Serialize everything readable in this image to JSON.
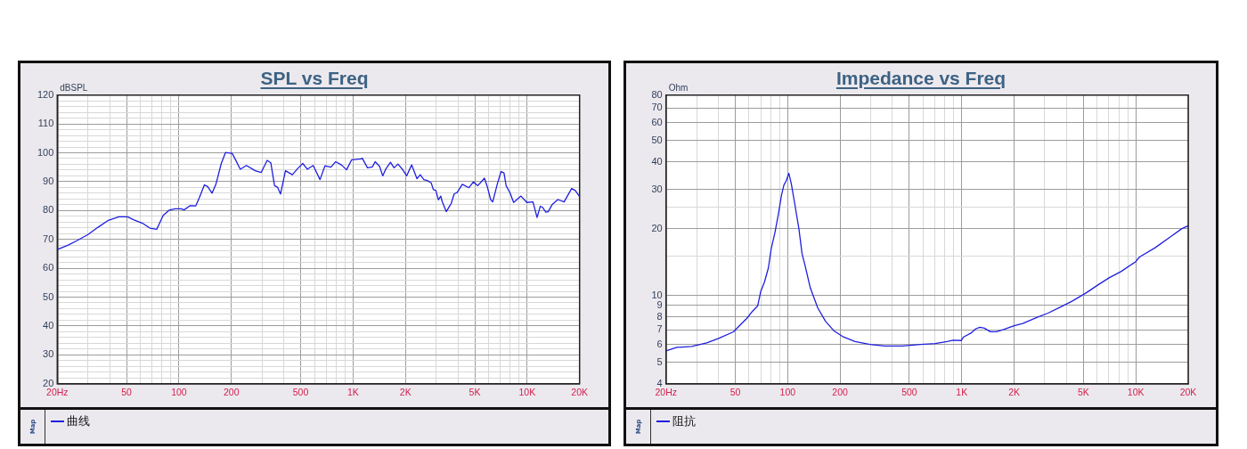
{
  "chart_data": [
    {
      "type": "line",
      "title": "SPL vs Freq",
      "ylabel": "dBSPL",
      "log": "x",
      "grid": true,
      "legend": "bottom",
      "annotations": [
        "Map"
      ],
      "x": [
        20,
        23.1,
        26,
        29.9,
        34.3,
        39.3,
        45.1,
        50.7,
        54.8,
        61.7,
        68.1,
        74.5,
        81.2,
        87.8,
        95,
        103,
        107,
        116,
        125,
        131,
        140,
        146,
        155,
        163,
        175,
        185,
        202,
        212,
        225,
        244,
        274,
        297,
        321,
        337,
        354,
        368,
        383,
        409,
        448,
        485,
        514,
        546,
        590,
        646,
        690,
        746,
        793,
        858,
        917,
        982,
        1110,
        1130,
        1210,
        1290,
        1340,
        1420,
        1480,
        1540,
        1640,
        1720,
        1810,
        1920,
        2030,
        2170,
        2330,
        2430,
        2550,
        2670,
        2810,
        2890,
        2990,
        3090,
        3190,
        3250,
        3430,
        3590,
        3660,
        3810,
        3960,
        4240,
        4630,
        4910,
        5210,
        5680,
        5910,
        6170,
        6340,
        6730,
        7080,
        7360,
        7570,
        7960,
        8360,
        9210,
        9960,
        10800,
        11400,
        11900,
        12300,
        12800,
        13200,
        13900,
        15000,
        16300,
        18000,
        18900,
        20000
      ],
      "series": [
        {
          "name": "曲线",
          "color": "#1f1fe0",
          "values": [
            66.5,
            68,
            69.6,
            71.6,
            74.2,
            76.6,
            77.8,
            77.8,
            76.8,
            75.6,
            73.9,
            73.5,
            78.3,
            80.1,
            80.6,
            80.6,
            80.2,
            81.7,
            81.6,
            84.5,
            88.9,
            88.3,
            86,
            89.1,
            96.3,
            100.1,
            99.8,
            97.4,
            94.3,
            95.6,
            93.8,
            93.2,
            97.4,
            96.5,
            88.6,
            88.1,
            85.7,
            93.8,
            92.4,
            94.8,
            96.3,
            94.3,
            95.6,
            90.7,
            95.5,
            95,
            96.9,
            95.8,
            94.1,
            97.6,
            97.9,
            98.1,
            94.8,
            95.1,
            96.9,
            95.3,
            92,
            94.3,
            96.7,
            94.8,
            96.1,
            94.3,
            92,
            95.8,
            91,
            92.4,
            90.7,
            90.4,
            89.6,
            87.3,
            86.9,
            83.7,
            85,
            83.1,
            79.6,
            81.6,
            82.4,
            85.8,
            86.2,
            89.1,
            87.9,
            89.9,
            88.6,
            91.2,
            88.1,
            83.8,
            83,
            89.1,
            93.5,
            93,
            88.6,
            86.2,
            82.8,
            85,
            82.8,
            83,
            77.6,
            81.5,
            81,
            79.4,
            79.6,
            82,
            83.8,
            83,
            87.6,
            86.9,
            84.8
          ]
        }
      ],
      "xlim": [
        20,
        20000
      ],
      "xticks": [
        {
          "value": 20,
          "label": "20Hz"
        },
        {
          "value": 30,
          "label": null
        },
        {
          "value": 40,
          "label": null
        },
        50,
        {
          "value": 60,
          "label": null
        },
        {
          "value": 70,
          "label": null
        },
        {
          "value": 80,
          "label": null
        },
        {
          "value": 90,
          "label": null
        },
        100,
        200,
        {
          "value": 300,
          "label": null
        },
        {
          "value": 400,
          "label": null
        },
        500,
        {
          "value": 600,
          "label": null
        },
        {
          "value": 700,
          "label": null
        },
        {
          "value": 800,
          "label": null
        },
        {
          "value": 900,
          "label": null
        },
        {
          "value": 1000,
          "label": "1K"
        },
        {
          "value": 2000,
          "label": "2K"
        },
        {
          "value": 3000,
          "label": null
        },
        {
          "value": 4000,
          "label": null
        },
        {
          "value": 5000,
          "label": "5K"
        },
        {
          "value": 6000,
          "label": null
        },
        {
          "value": 7000,
          "label": null
        },
        {
          "value": 8000,
          "label": null
        },
        {
          "value": 9000,
          "label": null
        },
        {
          "value": 10000,
          "label": "10K"
        },
        {
          "value": 20000,
          "label": "20K"
        }
      ],
      "ylim": [
        20,
        120
      ],
      "yticks": [
        20,
        {
          "value": 22,
          "label": null
        },
        {
          "value": 24,
          "label": null
        },
        {
          "value": 26,
          "label": null
        },
        {
          "value": 28,
          "label": null
        },
        30,
        {
          "value": 32,
          "label": null
        },
        {
          "value": 34,
          "label": null
        },
        {
          "value": 36,
          "label": null
        },
        {
          "value": 38,
          "label": null
        },
        40,
        {
          "value": 42,
          "label": null
        },
        {
          "value": 44,
          "label": null
        },
        {
          "value": 46,
          "label": null
        },
        {
          "value": 48,
          "label": null
        },
        50,
        {
          "value": 52,
          "label": null
        },
        {
          "value": 54,
          "label": null
        },
        {
          "value": 56,
          "label": null
        },
        {
          "value": 58,
          "label": null
        },
        60,
        {
          "value": 62,
          "label": null
        },
        {
          "value": 64,
          "label": null
        },
        {
          "value": 66,
          "label": null
        },
        {
          "value": 68,
          "label": null
        },
        70,
        {
          "value": 72,
          "label": null
        },
        {
          "value": 74,
          "label": null
        },
        {
          "value": 76,
          "label": null
        },
        {
          "value": 78,
          "label": null
        },
        80,
        {
          "value": 82,
          "label": null
        },
        {
          "value": 84,
          "label": null
        },
        {
          "value": 86,
          "label": null
        },
        {
          "value": 88,
          "label": null
        },
        90,
        {
          "value": 92,
          "label": null
        },
        {
          "value": 94,
          "label": null
        },
        {
          "value": 96,
          "label": null
        },
        {
          "value": 98,
          "label": null
        },
        100,
        {
          "value": 102,
          "label": null
        },
        {
          "value": 104,
          "label": null
        },
        {
          "value": 106,
          "label": null
        },
        {
          "value": 108,
          "label": null
        },
        110,
        {
          "value": 112,
          "label": null
        },
        {
          "value": 114,
          "label": null
        },
        {
          "value": 116,
          "label": null
        },
        {
          "value": 118,
          "label": null
        },
        120
      ]
    },
    {
      "type": "line",
      "title": "Impedance vs Freq",
      "ylabel": "Ohm",
      "log": "xy",
      "grid": true,
      "legend": "bottom",
      "annotations": [
        "Map"
      ],
      "x": [
        20,
        23.1,
        28.1,
        34.3,
        40.1,
        48.8,
        52.8,
        58.2,
        62.9,
        67.3,
        70,
        73.6,
        77.5,
        80.4,
        84.5,
        88.6,
        92.1,
        95.1,
        98.2,
        101.6,
        104.9,
        110,
        116,
        121,
        126,
        135,
        149,
        165,
        185,
        209,
        244,
        297,
        361,
        457,
        579,
        705,
        824,
        892,
        996,
        1020,
        1130,
        1200,
        1270,
        1350,
        1460,
        1580,
        1740,
        2000,
        2240,
        2680,
        3130,
        3670,
        4300,
        5220,
        6110,
        7020,
        8210,
        9990,
        10500,
        12900,
        15700,
        18400,
        20000
      ],
      "series": [
        {
          "name": "阻抗",
          "color": "#1f1fe0",
          "values": [
            5.62,
            5.83,
            5.89,
            6.11,
            6.4,
            6.85,
            7.29,
            7.87,
            8.5,
            8.98,
            10.4,
            11.5,
            13.3,
            16.2,
            19.2,
            23.4,
            28.2,
            31.4,
            32.9,
            35.5,
            31.9,
            25.7,
            20,
            15.4,
            13.6,
            10.8,
            8.77,
            7.65,
            6.91,
            6.5,
            6.2,
            6.01,
            5.92,
            5.92,
            6.01,
            6.07,
            6.2,
            6.28,
            6.26,
            6.48,
            6.76,
            7.06,
            7.19,
            7.12,
            6.86,
            6.86,
            7.02,
            7.3,
            7.47,
            7.94,
            8.32,
            8.84,
            9.41,
            10.3,
            11.2,
            12,
            12.8,
            14.2,
            14.9,
            16.4,
            18.3,
            20,
            20.6
          ]
        }
      ],
      "xlim": [
        20,
        20000
      ],
      "xticks": [
        {
          "value": 20,
          "label": "20Hz"
        },
        {
          "value": 30,
          "label": null
        },
        {
          "value": 40,
          "label": null
        },
        50,
        {
          "value": 60,
          "label": null
        },
        {
          "value": 70,
          "label": null
        },
        {
          "value": 80,
          "label": null
        },
        {
          "value": 90,
          "label": null
        },
        100,
        200,
        {
          "value": 300,
          "label": null
        },
        {
          "value": 400,
          "label": null
        },
        500,
        {
          "value": 600,
          "label": null
        },
        {
          "value": 700,
          "label": null
        },
        {
          "value": 800,
          "label": null
        },
        {
          "value": 900,
          "label": null
        },
        {
          "value": 1000,
          "label": "1K"
        },
        {
          "value": 2000,
          "label": "2K"
        },
        {
          "value": 3000,
          "label": null
        },
        {
          "value": 4000,
          "label": null
        },
        {
          "value": 5000,
          "label": "5K"
        },
        {
          "value": 6000,
          "label": null
        },
        {
          "value": 7000,
          "label": null
        },
        {
          "value": 8000,
          "label": null
        },
        {
          "value": 9000,
          "label": null
        },
        {
          "value": 10000,
          "label": "10K"
        },
        {
          "value": 20000,
          "label": "20K"
        }
      ],
      "ylim": [
        4,
        80
      ],
      "yticks": [
        4,
        5,
        6,
        7,
        8,
        9,
        10,
        {
          "value": 15,
          "label": null
        },
        20,
        {
          "value": 25,
          "label": null
        },
        30,
        40,
        50,
        60,
        70,
        80
      ]
    }
  ]
}
